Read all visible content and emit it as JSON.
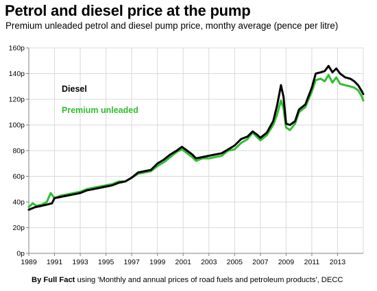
{
  "header": {
    "title": "Petrol and diesel price at the pump",
    "subtitle": "Premium unleaded petrol and diesel pump price, monthy average (pence per litre)"
  },
  "source": {
    "by": "By Full Fact",
    "text": " using 'Monthly and annual prices of road fuels and petroleum products', DECC"
  },
  "colors": {
    "diesel": "#000000",
    "petrol": "#2fbf2f",
    "grid": "#d9d9d9",
    "axis": "#808080"
  },
  "chart_data": {
    "type": "line",
    "ylim": [
      0,
      160
    ],
    "xlim": [
      1989,
      2015
    ],
    "grid": true,
    "legend_placement": "top-left",
    "y_ticks": [
      "0p",
      "20p",
      "40p",
      "60p",
      "80p",
      "100p",
      "120p",
      "140p",
      "160p"
    ],
    "x_ticks": [
      "1989",
      "1991",
      "1993",
      "1995",
      "1997",
      "1999",
      "2001",
      "2003",
      "2005",
      "2007",
      "2009",
      "2011",
      "2013"
    ],
    "series": [
      {
        "name": "Diesel",
        "points": [
          [
            1989.0,
            34
          ],
          [
            1989.5,
            36
          ],
          [
            1990.0,
            37
          ],
          [
            1990.4,
            38
          ],
          [
            1990.8,
            39
          ],
          [
            1991.0,
            43
          ],
          [
            1991.5,
            44
          ],
          [
            1992.0,
            45
          ],
          [
            1992.5,
            46
          ],
          [
            1993.0,
            47
          ],
          [
            1993.5,
            49
          ],
          [
            1994.0,
            50
          ],
          [
            1994.5,
            51
          ],
          [
            1995.0,
            52
          ],
          [
            1995.5,
            53
          ],
          [
            1996.0,
            55
          ],
          [
            1996.5,
            56
          ],
          [
            1997.0,
            59
          ],
          [
            1997.5,
            63
          ],
          [
            1998.0,
            64
          ],
          [
            1998.5,
            65
          ],
          [
            1999.0,
            70
          ],
          [
            1999.5,
            73
          ],
          [
            2000.0,
            77
          ],
          [
            2000.5,
            80
          ],
          [
            2000.9,
            83
          ],
          [
            2001.3,
            80
          ],
          [
            2001.7,
            77
          ],
          [
            2002.0,
            74
          ],
          [
            2002.5,
            75
          ],
          [
            2003.0,
            76
          ],
          [
            2003.5,
            77
          ],
          [
            2004.0,
            78
          ],
          [
            2004.5,
            81
          ],
          [
            2005.0,
            84
          ],
          [
            2005.5,
            89
          ],
          [
            2006.0,
            91
          ],
          [
            2006.4,
            95
          ],
          [
            2006.8,
            92
          ],
          [
            2007.0,
            90
          ],
          [
            2007.5,
            94
          ],
          [
            2008.0,
            103
          ],
          [
            2008.3,
            115
          ],
          [
            2008.6,
            131
          ],
          [
            2008.8,
            122
          ],
          [
            2009.0,
            101
          ],
          [
            2009.3,
            100
          ],
          [
            2009.7,
            103
          ],
          [
            2010.0,
            112
          ],
          [
            2010.5,
            116
          ],
          [
            2011.0,
            129
          ],
          [
            2011.3,
            140
          ],
          [
            2011.7,
            141
          ],
          [
            2012.0,
            142
          ],
          [
            2012.3,
            146
          ],
          [
            2012.6,
            141
          ],
          [
            2012.9,
            144
          ],
          [
            2013.2,
            140
          ],
          [
            2013.6,
            137
          ],
          [
            2014.0,
            136
          ],
          [
            2014.3,
            134
          ],
          [
            2014.6,
            131
          ],
          [
            2014.9,
            126
          ],
          [
            2015.0,
            124
          ]
        ]
      },
      {
        "name": "Premium unleaded",
        "points": [
          [
            1989.0,
            36
          ],
          [
            1989.3,
            39
          ],
          [
            1989.6,
            37
          ],
          [
            1990.0,
            38
          ],
          [
            1990.4,
            40
          ],
          [
            1990.7,
            47
          ],
          [
            1991.0,
            43
          ],
          [
            1991.5,
            45
          ],
          [
            1992.0,
            46
          ],
          [
            1992.5,
            47
          ],
          [
            1993.0,
            48
          ],
          [
            1993.5,
            50
          ],
          [
            1994.0,
            51
          ],
          [
            1994.5,
            52
          ],
          [
            1995.0,
            53
          ],
          [
            1995.5,
            54
          ],
          [
            1996.0,
            56
          ],
          [
            1996.5,
            56
          ],
          [
            1997.0,
            59
          ],
          [
            1997.5,
            62
          ],
          [
            1998.0,
            63
          ],
          [
            1998.5,
            64
          ],
          [
            1999.0,
            68
          ],
          [
            1999.5,
            71
          ],
          [
            2000.0,
            75
          ],
          [
            2000.5,
            79
          ],
          [
            2000.9,
            81
          ],
          [
            2001.3,
            78
          ],
          [
            2001.7,
            75
          ],
          [
            2002.0,
            72
          ],
          [
            2002.5,
            74
          ],
          [
            2003.0,
            74
          ],
          [
            2003.5,
            75
          ],
          [
            2004.0,
            76
          ],
          [
            2004.5,
            80
          ],
          [
            2005.0,
            81
          ],
          [
            2005.5,
            86
          ],
          [
            2006.0,
            89
          ],
          [
            2006.4,
            94
          ],
          [
            2006.8,
            90
          ],
          [
            2007.0,
            88
          ],
          [
            2007.5,
            92
          ],
          [
            2008.0,
            100
          ],
          [
            2008.3,
            108
          ],
          [
            2008.6,
            119
          ],
          [
            2008.8,
            113
          ],
          [
            2009.0,
            98
          ],
          [
            2009.3,
            96
          ],
          [
            2009.7,
            101
          ],
          [
            2010.0,
            110
          ],
          [
            2010.5,
            114
          ],
          [
            2011.0,
            126
          ],
          [
            2011.3,
            135
          ],
          [
            2011.7,
            136
          ],
          [
            2012.0,
            134
          ],
          [
            2012.3,
            139
          ],
          [
            2012.6,
            133
          ],
          [
            2012.9,
            137
          ],
          [
            2013.2,
            132
          ],
          [
            2013.6,
            131
          ],
          [
            2014.0,
            130
          ],
          [
            2014.3,
            129
          ],
          [
            2014.6,
            127
          ],
          [
            2014.9,
            122
          ],
          [
            2015.0,
            119
          ]
        ]
      }
    ]
  }
}
